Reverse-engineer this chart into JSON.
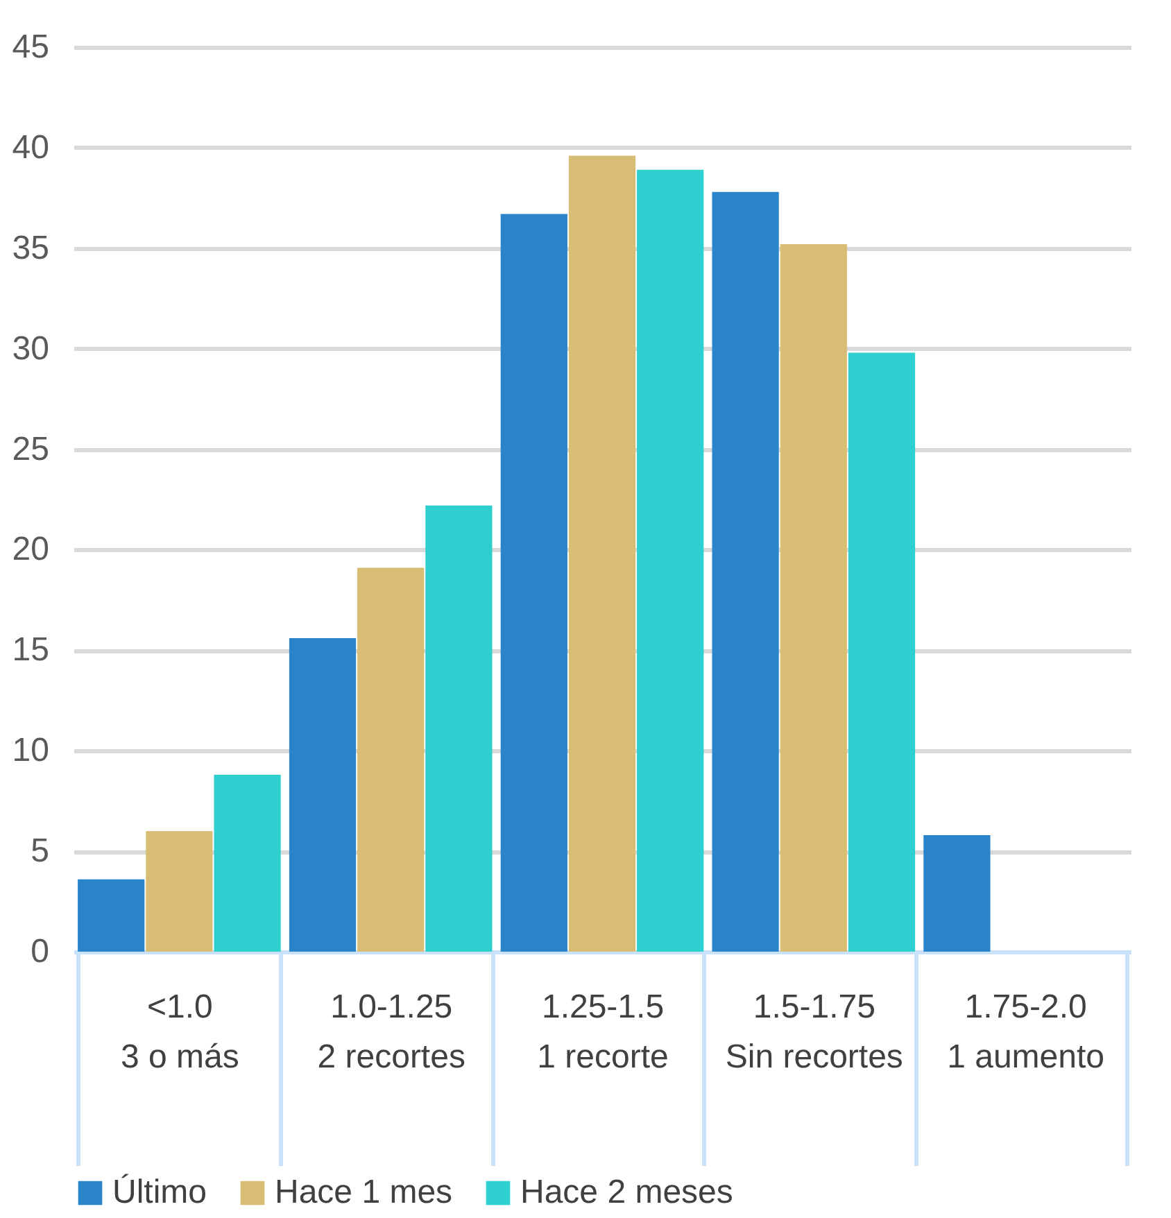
{
  "chart_data": {
    "type": "bar",
    "categories": [
      "<1.0\n3 o más",
      "1.0-1.25\n2 recortes",
      "1.25-1.5\n1 recorte",
      "1.5-1.75\nSin recortes",
      "1.75-2.0\n1 aumento"
    ],
    "series": [
      {
        "name": "Último",
        "color": "#2a84c9",
        "values": [
          3.6,
          15.6,
          36.7,
          37.8,
          5.8
        ]
      },
      {
        "name": "Hace 1 mes",
        "color": "#d8bd74",
        "values": [
          6.0,
          19.1,
          39.6,
          35.2,
          null
        ]
      },
      {
        "name": "Hace 2 meses",
        "color": "#2ecfcf",
        "values": [
          8.8,
          22.2,
          38.9,
          29.8,
          null
        ]
      }
    ],
    "ylim": [
      0,
      45
    ],
    "yticks": [
      0,
      5,
      10,
      15,
      20,
      25,
      30,
      35,
      40,
      45
    ],
    "grid": "y",
    "legend": "bottom"
  }
}
